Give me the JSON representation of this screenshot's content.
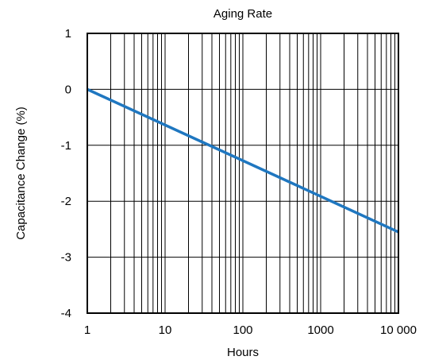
{
  "chart_data": {
    "type": "line",
    "title": "Aging Rate",
    "xlabel": "Hours",
    "ylabel": "Capacitance Change (%)",
    "x_scale": "log",
    "xlim": [
      1,
      10000
    ],
    "ylim": [
      -4,
      1
    ],
    "x_ticks": [
      1,
      10,
      100,
      1000,
      10000
    ],
    "x_tick_labels": [
      "1",
      "10",
      "100",
      "1000",
      "10 000"
    ],
    "y_ticks": [
      1,
      0,
      -1,
      -2,
      -3,
      -4
    ],
    "y_tick_labels": [
      "1",
      "0",
      "-1",
      "-2",
      "-3",
      "-4"
    ],
    "grid": true,
    "legend": "none",
    "series": [
      {
        "color": "#1f77c0",
        "points": [
          [
            1,
            0
          ],
          [
            10000,
            -2.55
          ]
        ]
      }
    ]
  }
}
